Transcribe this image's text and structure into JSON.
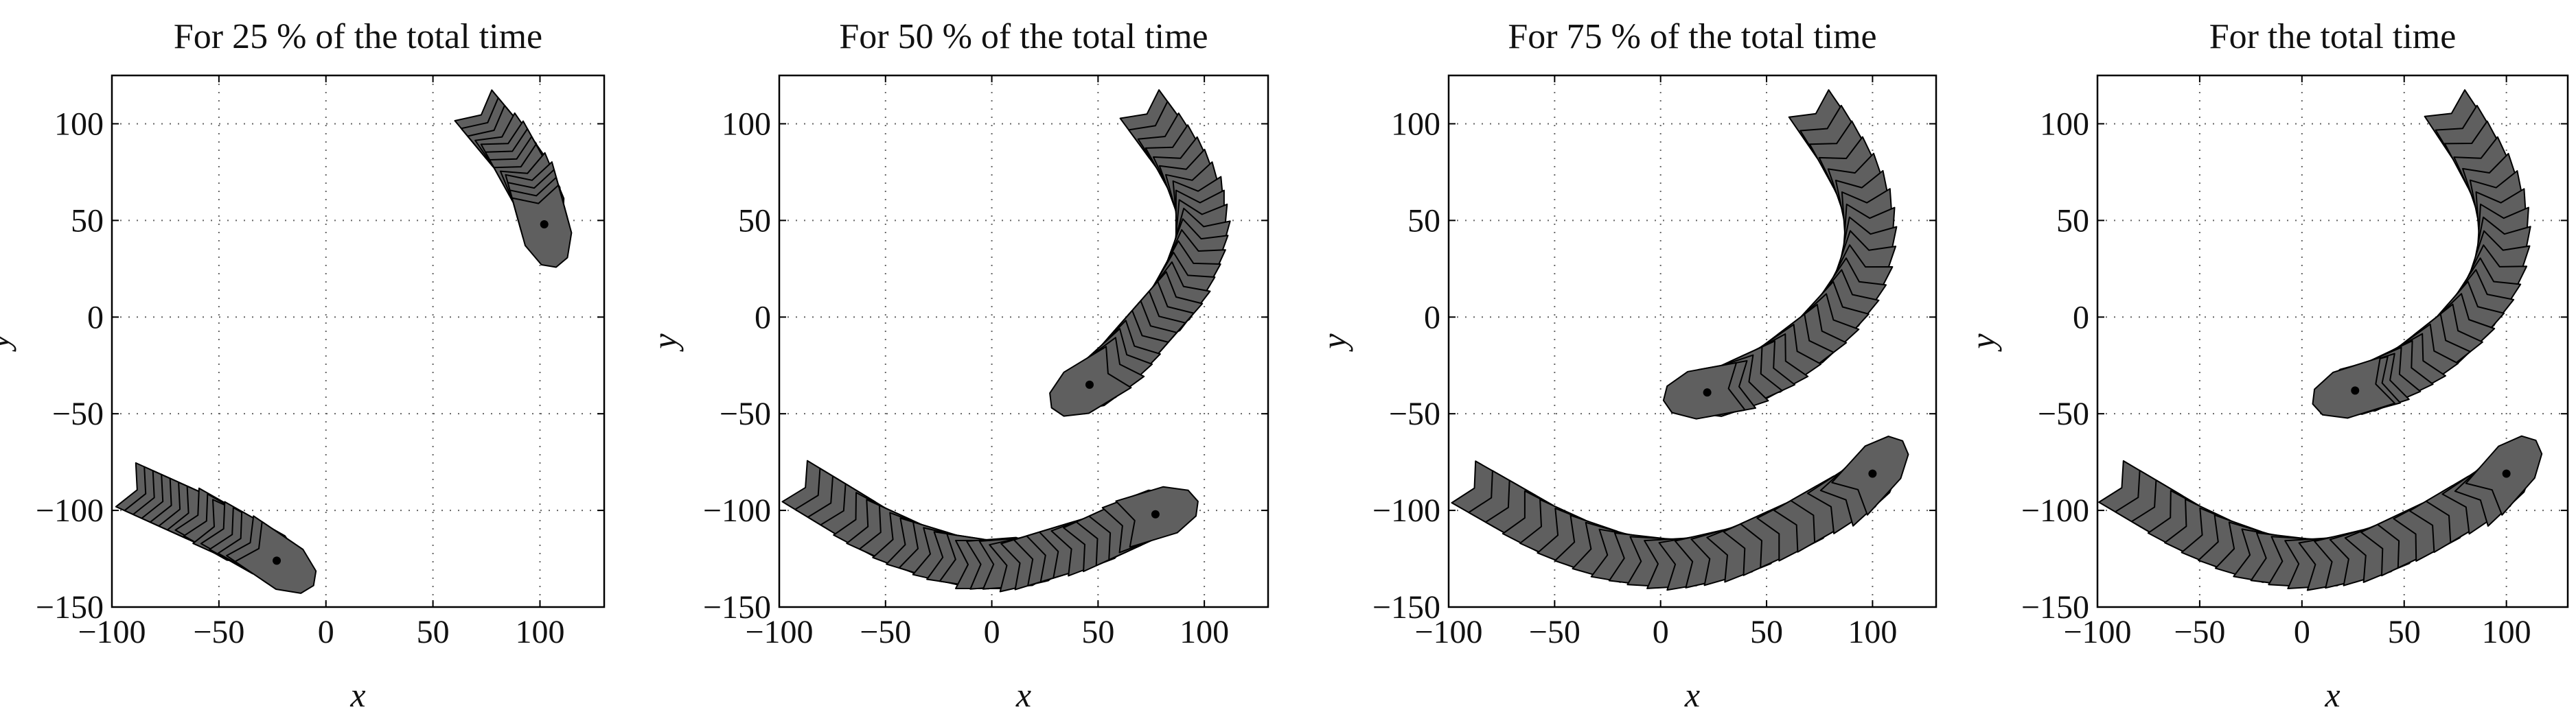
{
  "chart_data": [
    {
      "type": "scatter",
      "title": "For 25 % of the total time",
      "xlabel": "x",
      "ylabel": "y",
      "xlim": [
        -100,
        130
      ],
      "ylim": [
        -150,
        125
      ],
      "xticks": [
        -100,
        -50,
        0,
        50,
        100
      ],
      "yticks": [
        -150,
        -100,
        -50,
        0,
        50,
        100
      ],
      "grid": true,
      "series": [
        {
          "points": [
            [
              -79,
              -94
            ],
            [
              -75,
              -96
            ],
            [
              -71,
              -98
            ],
            [
              -67,
              -100
            ],
            [
              -63,
              -102
            ],
            [
              -59,
              -104
            ],
            [
              -55,
              -106
            ],
            [
              -51,
              -108
            ],
            [
              -47,
              -111
            ],
            [
              -43,
              -113
            ],
            [
              -39,
              -115
            ],
            [
              -35,
              -118
            ],
            [
              -31,
              -120
            ],
            [
              -27,
              -123
            ],
            [
              -23,
              -126
            ]
          ]
        },
        {
          "points": [
            [
              79,
              96
            ],
            [
              82,
              92
            ],
            [
              85,
              88
            ],
            [
              88,
              84
            ],
            [
              90,
              80
            ],
            [
              92,
              76
            ],
            [
              94,
              72
            ],
            [
              96,
              68
            ],
            [
              98,
              64
            ],
            [
              99,
              60
            ],
            [
              100,
              56
            ],
            [
              101,
              52
            ],
            [
              102,
              48
            ]
          ]
        }
      ]
    },
    {
      "type": "scatter",
      "title": "For 50 % of the total time",
      "xlabel": "x",
      "ylabel": "y",
      "xlim": [
        -100,
        130
      ],
      "ylim": [
        -150,
        125
      ],
      "xticks": [
        -100,
        -50,
        0,
        50,
        100
      ],
      "yticks": [
        -150,
        -100,
        -50,
        0,
        50,
        100
      ],
      "grid": true,
      "series": [
        {
          "points": [
            [
              -79,
              -94
            ],
            [
              -73,
              -98
            ],
            [
              -67,
              -102
            ],
            [
              -61,
              -106
            ],
            [
              -55,
              -110
            ],
            [
              -49,
              -113
            ],
            [
              -43,
              -116
            ],
            [
              -37,
              -119
            ],
            [
              -31,
              -121
            ],
            [
              -25,
              -123
            ],
            [
              -19,
              -125
            ],
            [
              -13,
              -126
            ],
            [
              -7,
              -127
            ],
            [
              -1,
              -128
            ],
            [
              5,
              -127
            ],
            [
              11,
              -127
            ],
            [
              17,
              -126
            ],
            [
              23,
              -124
            ],
            [
              29,
              -122
            ],
            [
              35,
              -120
            ],
            [
              41,
              -118
            ],
            [
              47,
              -116
            ],
            [
              53,
              -113
            ],
            [
              59,
              -110
            ],
            [
              65,
              -107
            ],
            [
              71,
              -104
            ],
            [
              77,
              -102
            ]
          ]
        },
        {
          "points": [
            [
              79,
              96
            ],
            [
              83,
              90
            ],
            [
              87,
              84
            ],
            [
              90,
              78
            ],
            [
              93,
              72
            ],
            [
              95,
              66
            ],
            [
              97,
              60
            ],
            [
              98,
              54
            ],
            [
              98,
              48
            ],
            [
              98,
              42
            ],
            [
              97,
              36
            ],
            [
              95,
              30
            ],
            [
              93,
              24
            ],
            [
              90,
              18
            ],
            [
              87,
              12
            ],
            [
              84,
              7
            ],
            [
              80,
              2
            ],
            [
              76,
              -3
            ],
            [
              72,
              -8
            ],
            [
              68,
              -13
            ],
            [
              64,
              -18
            ],
            [
              60,
              -23
            ],
            [
              56,
              -27
            ],
            [
              52,
              -31
            ],
            [
              46,
              -35
            ]
          ]
        }
      ]
    },
    {
      "type": "scatter",
      "title": "For 75 % of the total time",
      "xlabel": "x",
      "ylabel": "y",
      "xlim": [
        -100,
        130
      ],
      "ylim": [
        -150,
        125
      ],
      "xticks": [
        -100,
        -50,
        0,
        50,
        100
      ],
      "yticks": [
        -150,
        -100,
        -50,
        0,
        50,
        100
      ],
      "grid": true,
      "series": [
        {
          "points": [
            [
              -79,
              -94
            ],
            [
              -71,
              -99
            ],
            [
              -63,
              -104
            ],
            [
              -55,
              -109
            ],
            [
              -47,
              -113
            ],
            [
              -39,
              -117
            ],
            [
              -31,
              -120
            ],
            [
              -23,
              -123
            ],
            [
              -15,
              -125
            ],
            [
              -7,
              -126
            ],
            [
              1,
              -127
            ],
            [
              9,
              -127
            ],
            [
              17,
              -126
            ],
            [
              25,
              -124
            ],
            [
              33,
              -122
            ],
            [
              41,
              -119
            ],
            [
              49,
              -115
            ],
            [
              57,
              -111
            ],
            [
              65,
              -107
            ],
            [
              73,
              -102
            ],
            [
              81,
              -97
            ],
            [
              89,
              -92
            ],
            [
              95,
              -87
            ],
            [
              100,
              -81
            ]
          ]
        },
        {
          "points": [
            [
              79,
              96
            ],
            [
              84,
              88
            ],
            [
              88,
              80
            ],
            [
              92,
              72
            ],
            [
              95,
              64
            ],
            [
              97,
              56
            ],
            [
              98,
              48
            ],
            [
              98,
              40
            ],
            [
              97,
              32
            ],
            [
              95,
              24
            ],
            [
              92,
              16
            ],
            [
              88,
              9
            ],
            [
              84,
              3
            ],
            [
              79,
              -3
            ],
            [
              74,
              -9
            ],
            [
              68,
              -14
            ],
            [
              62,
              -19
            ],
            [
              56,
              -24
            ],
            [
              50,
              -28
            ],
            [
              44,
              -31
            ],
            [
              38,
              -34
            ],
            [
              32,
              -37
            ],
            [
              27,
              -38
            ],
            [
              22,
              -39
            ]
          ]
        }
      ]
    },
    {
      "type": "scatter",
      "title": "For  the total time",
      "xlabel": "x",
      "ylabel": "y",
      "xlim": [
        -100,
        130
      ],
      "ylim": [
        -150,
        125
      ],
      "xticks": [
        -100,
        -50,
        0,
        50,
        100
      ],
      "yticks": [
        -150,
        -100,
        -50,
        0,
        50,
        100
      ],
      "grid": true,
      "series": [
        {
          "points": [
            [
              -79,
              -94
            ],
            [
              -71,
              -99
            ],
            [
              -63,
              -104
            ],
            [
              -55,
              -109
            ],
            [
              -47,
              -113
            ],
            [
              -39,
              -117
            ],
            [
              -31,
              -120
            ],
            [
              -23,
              -123
            ],
            [
              -15,
              -125
            ],
            [
              -7,
              -126
            ],
            [
              1,
              -127
            ],
            [
              9,
              -127
            ],
            [
              17,
              -126
            ],
            [
              25,
              -124
            ],
            [
              33,
              -122
            ],
            [
              41,
              -119
            ],
            [
              49,
              -115
            ],
            [
              57,
              -111
            ],
            [
              65,
              -107
            ],
            [
              73,
              -102
            ],
            [
              81,
              -97
            ],
            [
              89,
              -92
            ],
            [
              95,
              -87
            ],
            [
              100,
              -81
            ]
          ]
        },
        {
          "points": [
            [
              79,
              96
            ],
            [
              84,
              88
            ],
            [
              88,
              80
            ],
            [
              92,
              72
            ],
            [
              95,
              64
            ],
            [
              97,
              56
            ],
            [
              98,
              48
            ],
            [
              98,
              40
            ],
            [
              97,
              32
            ],
            [
              95,
              24
            ],
            [
              92,
              16
            ],
            [
              88,
              9
            ],
            [
              84,
              3
            ],
            [
              79,
              -3
            ],
            [
              74,
              -9
            ],
            [
              68,
              -14
            ],
            [
              62,
              -19
            ],
            [
              56,
              -24
            ],
            [
              50,
              -28
            ],
            [
              44,
              -31
            ],
            [
              38,
              -34
            ],
            [
              33,
              -36
            ],
            [
              29,
              -37
            ],
            [
              26,
              -38
            ]
          ]
        }
      ]
    }
  ]
}
